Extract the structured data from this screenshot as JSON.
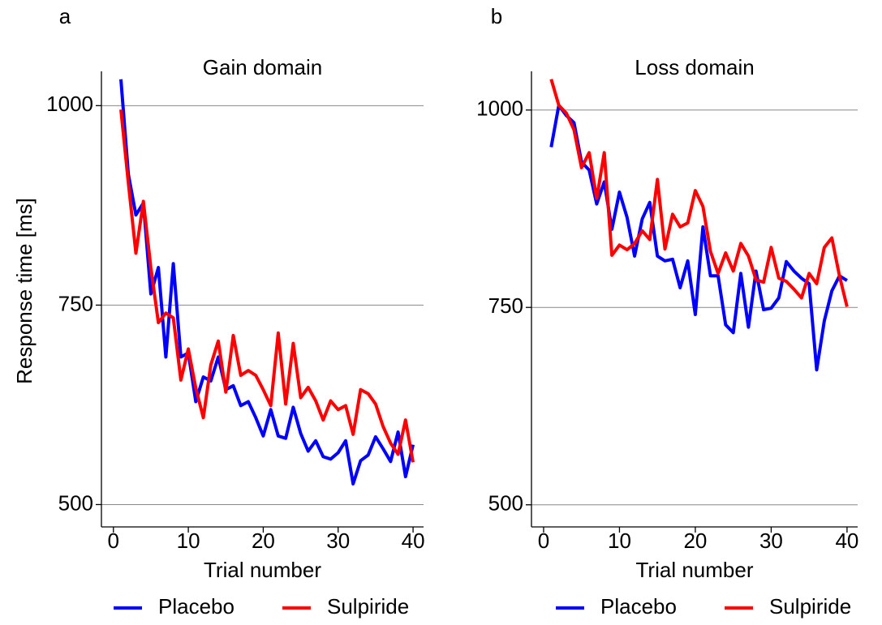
{
  "chart_data": [
    {
      "type": "line",
      "label": "a",
      "title": "Gain domain",
      "xlabel": "Trial number",
      "ylabel": "Response time [ms]",
      "x": [
        1,
        2,
        3,
        4,
        5,
        6,
        7,
        8,
        9,
        10,
        11,
        12,
        13,
        14,
        15,
        16,
        17,
        18,
        19,
        20,
        21,
        22,
        23,
        24,
        25,
        26,
        27,
        28,
        29,
        30,
        31,
        32,
        33,
        34,
        35,
        36,
        37,
        38,
        39,
        40
      ],
      "series": [
        {
          "name": "Placebo",
          "color": "#0000ff",
          "values": [
            1033,
            914,
            863,
            878,
            764,
            797,
            685,
            802,
            685,
            690,
            629,
            660,
            655,
            685,
            644,
            649,
            624,
            629,
            609,
            586,
            619,
            586,
            583,
            622,
            589,
            567,
            580,
            560,
            557,
            565,
            580,
            526,
            555,
            562,
            585,
            570,
            554,
            591,
            535,
            575
          ]
        },
        {
          "name": "Sulpiride",
          "color": "#ff0000",
          "values": [
            995,
            903,
            815,
            880,
            797,
            728,
            740,
            734,
            656,
            695,
            646,
            609,
            675,
            705,
            641,
            712,
            662,
            668,
            662,
            644,
            624,
            715,
            626,
            702,
            634,
            647,
            630,
            606,
            630,
            619,
            624,
            588,
            644,
            639,
            626,
            598,
            577,
            563,
            606,
            553
          ]
        }
      ],
      "xlim": [
        -1.6,
        41.4
      ],
      "ylim": [
        472,
        1043
      ],
      "xticks": [
        0,
        10,
        20,
        30,
        40
      ],
      "yticks": [
        500,
        750,
        1000
      ],
      "grid": true,
      "legend": "bottom"
    },
    {
      "type": "line",
      "label": "b",
      "title": "Loss domain",
      "xlabel": "Trial number",
      "x": [
        1,
        2,
        3,
        4,
        5,
        6,
        7,
        8,
        9,
        10,
        11,
        12,
        13,
        14,
        15,
        16,
        17,
        18,
        19,
        20,
        21,
        22,
        23,
        24,
        25,
        26,
        27,
        28,
        29,
        30,
        31,
        32,
        33,
        34,
        35,
        36,
        37,
        38,
        39,
        40
      ],
      "series": [
        {
          "name": "Placebo",
          "color": "#0000ff",
          "values": [
            953,
            1006,
            993,
            984,
            934,
            924,
            881,
            909,
            849,
            896,
            864,
            815,
            862,
            883,
            815,
            809,
            811,
            775,
            809,
            741,
            852,
            790,
            790,
            728,
            718,
            793,
            725,
            796,
            747,
            749,
            762,
            808,
            796,
            787,
            780,
            671,
            733,
            771,
            790,
            784
          ]
        },
        {
          "name": "Sulpiride",
          "color": "#ff0000",
          "values": [
            1039,
            1006,
            996,
            975,
            927,
            946,
            888,
            946,
            816,
            829,
            823,
            831,
            847,
            836,
            912,
            824,
            868,
            852,
            857,
            898,
            878,
            821,
            793,
            819,
            796,
            831,
            815,
            785,
            782,
            826,
            787,
            783,
            773,
            762,
            793,
            780,
            826,
            838,
            790,
            751
          ]
        }
      ],
      "xlim": [
        -1.6,
        41.4
      ],
      "ylim": [
        472,
        1049
      ],
      "xticks": [
        0,
        10,
        20,
        30,
        40
      ],
      "yticks": [
        500,
        750,
        1000
      ],
      "grid": true,
      "legend": "bottom"
    }
  ]
}
